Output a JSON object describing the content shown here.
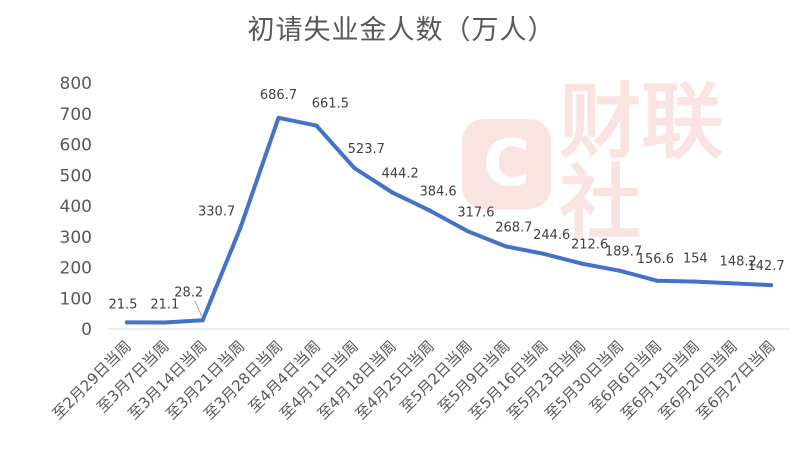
{
  "chart_data": {
    "type": "line",
    "title": "初请失业金人数（万人）",
    "xlabel": "",
    "ylabel": "",
    "ylim": [
      0,
      800
    ],
    "yticks": [
      0,
      100,
      200,
      300,
      400,
      500,
      600,
      700,
      800
    ],
    "grid": false,
    "legend": "none",
    "color": "#4472c4",
    "categories": [
      "至2月29日当周",
      "至3月7日当周",
      "至3月14日当周",
      "至3月21日当周",
      "至3月28日当周",
      "至4月4日当周",
      "至4月11日当周",
      "至4月18日当周",
      "至4月25日当周",
      "至5月2日当周",
      "至5月9日当周",
      "至5月16日当周",
      "至5月23日当周",
      "至5月30日当周",
      "至6月6日当周",
      "至6月13日当周",
      "至6月20日当周",
      "至6月27日当周"
    ],
    "series": [
      {
        "values": [
          21.5,
          21.1,
          28.2,
          330.7,
          686.7,
          661.5,
          523.7,
          444.2,
          384.6,
          317.6,
          268.7,
          244.6,
          212.6,
          189.7,
          156.6,
          154,
          148.2,
          142.7
        ],
        "labels": [
          "21.5",
          "21.1",
          "28.2",
          "330.7",
          "686.7",
          "661.5",
          "523.7",
          "444.2",
          "384.6",
          "317.6",
          "268.7",
          "244.6",
          "212.6",
          "189.7",
          "156.6",
          "154",
          "148.2",
          "142.7"
        ]
      }
    ]
  },
  "watermark": {
    "logo": "C",
    "text": "财联社"
  }
}
